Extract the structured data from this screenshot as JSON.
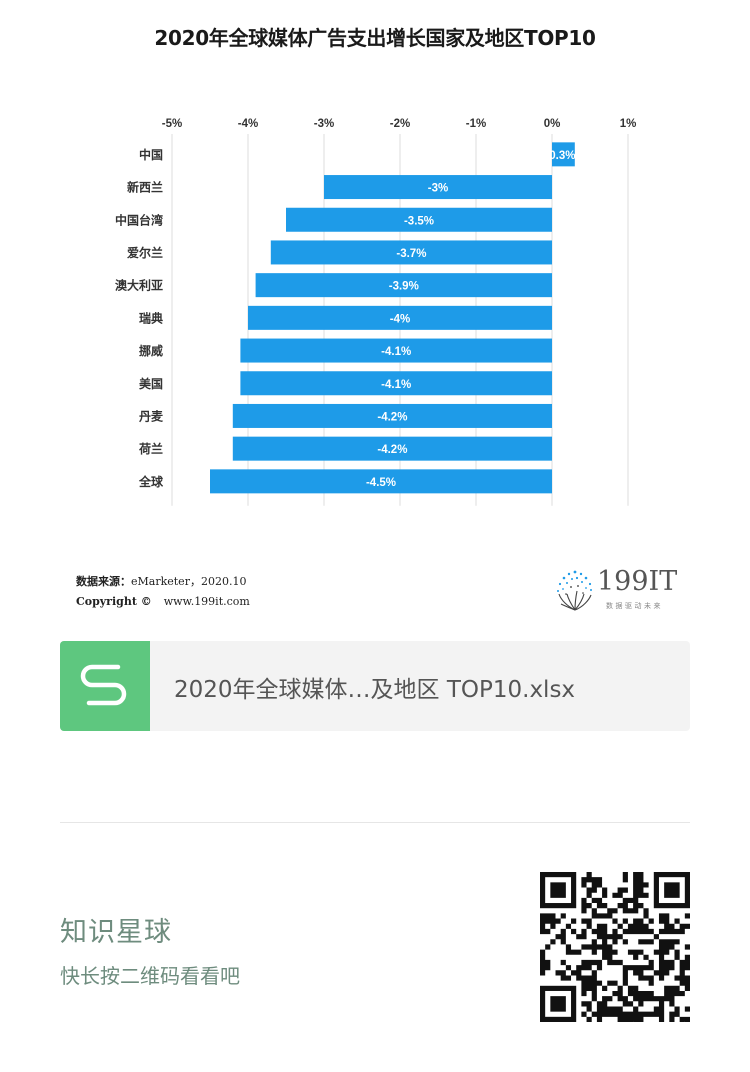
{
  "chart_data": {
    "type": "bar",
    "orientation": "horizontal",
    "title": "2020年全球媒体广告支出增长国家及地区TOP10",
    "categories": [
      "中国",
      "新西兰",
      "中国台湾",
      "爱尔兰",
      "澳大利亚",
      "瑞典",
      "挪威",
      "美国",
      "丹麦",
      "荷兰",
      "全球"
    ],
    "values": [
      0.3,
      -3,
      -3.5,
      -3.7,
      -3.9,
      -4,
      -4.1,
      -4.1,
      -4.2,
      -4.2,
      -4.5
    ],
    "data_labels": [
      "0.3%",
      "-3%",
      "-3.5%",
      "-3.7%",
      "-3.9%",
      "-4%",
      "-4.1%",
      "-4.1%",
      "-4.2%",
      "-4.2%",
      "-4.5%"
    ],
    "xlim": [
      -5,
      1
    ],
    "x_ticks": [
      -5,
      -4,
      -3,
      -2,
      -1,
      0,
      1
    ],
    "x_tick_labels": [
      "-5%",
      "-4%",
      "-3%",
      "-2%",
      "-1%",
      "0%",
      "1%"
    ],
    "xaxis_position": "top",
    "grid": true,
    "bar_color": "#1e9be8"
  },
  "source": {
    "label": "数据来源：",
    "value": "eMarketer，2020.10",
    "copyright_label": "Copyright ©",
    "website": "www.199it.com"
  },
  "logo": {
    "name": "199IT",
    "tagline": "数据驱动未来"
  },
  "file_card": {
    "icon": "spreadsheet-s-icon",
    "filename": "2020年全球媒体…及地区 TOP10.xlsx",
    "icon_color": "#5ec77f"
  },
  "promo": {
    "title": "知识星球",
    "subtitle": "快长按二维码看看吧",
    "text_color": "#6e8c7e"
  },
  "qr_icon": "qr-code-icon"
}
